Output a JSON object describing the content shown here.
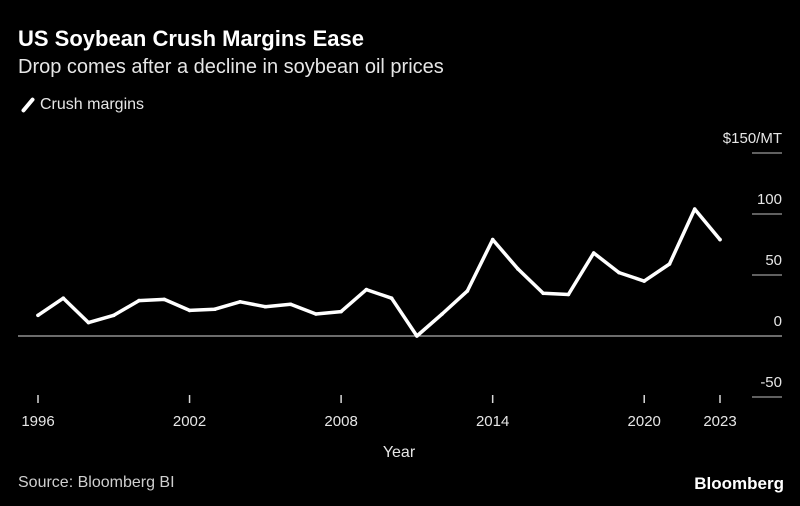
{
  "title": "US Soybean Crush Margins Ease",
  "subtitle": "Drop comes after a decline in soybean oil prices",
  "source": "Source: Bloomberg BI",
  "brand": "Bloomberg",
  "colors": {
    "background": "#000000",
    "line": "#ffffff",
    "text": "#ffffff"
  },
  "chart_data": {
    "type": "line",
    "xlabel": "Year",
    "ylabel": "",
    "ylim": [
      -50,
      150
    ],
    "yticks": [
      {
        "value": 150,
        "label": "$150/MT"
      },
      {
        "value": 100,
        "label": "100"
      },
      {
        "value": 50,
        "label": "50"
      },
      {
        "value": 0,
        "label": "0"
      },
      {
        "value": -50,
        "label": "-50"
      }
    ],
    "xlim": [
      1996,
      2023
    ],
    "xticks": [
      1996,
      2002,
      2008,
      2014,
      2020,
      2023
    ],
    "legend": "top-left",
    "grid": false,
    "series": [
      {
        "name": "Crush margins",
        "x": [
          1996,
          1997,
          1998,
          1999,
          2000,
          2001,
          2002,
          2003,
          2004,
          2005,
          2006,
          2007,
          2008,
          2009,
          2010,
          2011,
          2012,
          2013,
          2014,
          2015,
          2016,
          2017,
          2018,
          2019,
          2020,
          2021,
          2022,
          2023
        ],
        "values": [
          17,
          31,
          11,
          17,
          29,
          30,
          21,
          22,
          28,
          24,
          26,
          18,
          20,
          38,
          31,
          0,
          18,
          37,
          79,
          55,
          35,
          34,
          68,
          52,
          45,
          59,
          104,
          79
        ]
      }
    ]
  }
}
